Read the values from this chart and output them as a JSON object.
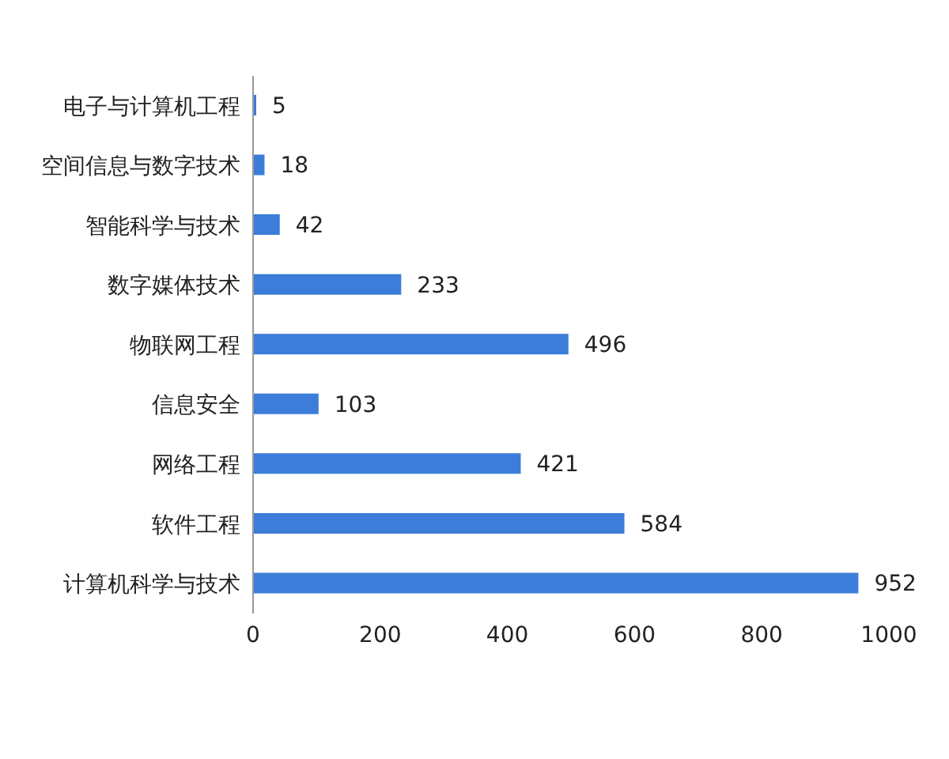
{
  "chart_data": {
    "type": "bar",
    "orientation": "horizontal",
    "categories": [
      "电子与计算机工程",
      "空间信息与数字技术",
      "智能科学与技术",
      "数字媒体技术",
      "物联网工程",
      "信息安全",
      "网络工程",
      "软件工程",
      "计算机科学与技术"
    ],
    "values": [
      5,
      18,
      42,
      233,
      496,
      103,
      421,
      584,
      952
    ],
    "color": "#3b7dd8",
    "data_labels": true,
    "xlim": [
      0,
      1000
    ],
    "xticks": [
      0,
      200,
      400,
      600,
      800,
      1000
    ],
    "grid": false,
    "legend": false
  }
}
